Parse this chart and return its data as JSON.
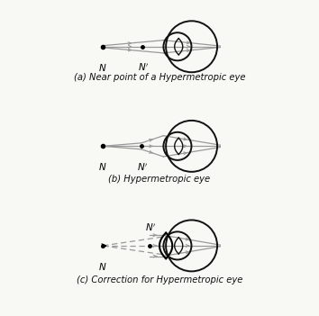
{
  "bg_color": "#f8f8f4",
  "line_color": "#999999",
  "eye_color": "#111111",
  "label_color": "#111111",
  "titles": [
    "(a) Near point of a Hypermetropic eye",
    "(b) Hypermetropic eye",
    "(c) Correction for Hypermetropic eye"
  ]
}
